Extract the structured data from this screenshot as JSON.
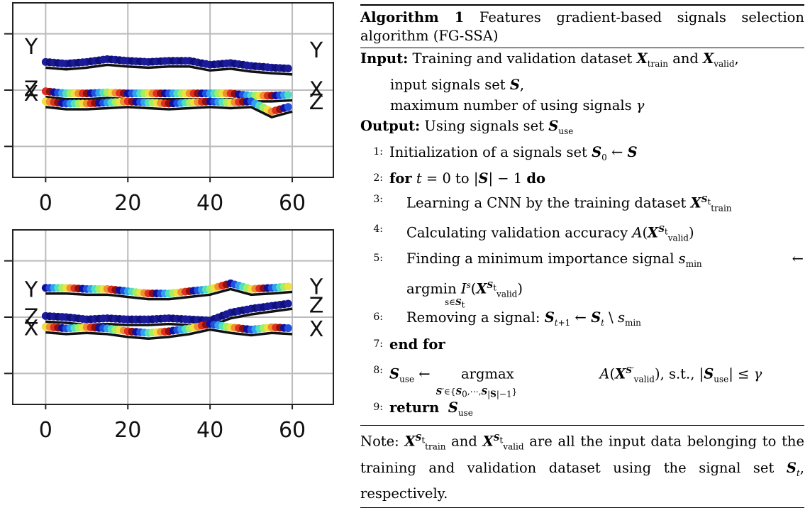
{
  "chart_data": [
    {
      "type": "line",
      "x_ticks": [
        0,
        20,
        40,
        60
      ],
      "xlim": [
        -8,
        70
      ],
      "grid": true,
      "left_labels": [
        {
          "text": "Y",
          "at": 0.78
        },
        {
          "text": "Z",
          "at": 0.03
        },
        {
          "text": "X",
          "at": -0.05
        }
      ],
      "right_labels": [
        {
          "text": "Y",
          "at": 0.72
        },
        {
          "text": "X",
          "at": 0.02
        },
        {
          "text": "Z",
          "at": -0.2
        }
      ],
      "ylim": [
        -1.55,
        1.55
      ],
      "y_grid": [
        -1.0,
        0.0,
        1.0
      ],
      "series": [
        {
          "color_map": "blue",
          "x": [
            0,
            5,
            10,
            15,
            20,
            25,
            30,
            35,
            40,
            45,
            50,
            55,
            60
          ],
          "y": [
            0.5,
            0.47,
            0.5,
            0.55,
            0.52,
            0.5,
            0.52,
            0.52,
            0.45,
            0.48,
            0.43,
            0.4,
            0.38
          ]
        },
        {
          "color_map": "jet",
          "x": [
            0,
            5,
            10,
            15,
            20,
            25,
            30,
            35,
            40,
            45,
            50,
            55,
            60
          ],
          "y": [
            -0.02,
            -0.06,
            -0.06,
            -0.04,
            -0.06,
            -0.06,
            -0.06,
            -0.06,
            -0.06,
            -0.06,
            -0.1,
            -0.1,
            -0.08
          ]
        },
        {
          "color_map": "jet",
          "x": [
            0,
            5,
            10,
            15,
            20,
            25,
            30,
            35,
            40,
            45,
            50,
            55,
            60
          ],
          "y": [
            -0.2,
            -0.24,
            -0.24,
            -0.22,
            -0.2,
            -0.22,
            -0.24,
            -0.22,
            -0.2,
            -0.22,
            -0.2,
            -0.38,
            -0.28
          ]
        }
      ]
    },
    {
      "type": "line",
      "x_ticks": [
        0,
        20,
        40,
        60
      ],
      "xlim": [
        -8,
        70
      ],
      "grid": true,
      "left_labels": [
        {
          "text": "Y",
          "at": 0.5
        },
        {
          "text": "Z",
          "at": 0.02
        },
        {
          "text": "X",
          "at": -0.18
        }
      ],
      "right_labels": [
        {
          "text": "Y",
          "at": 0.55
        },
        {
          "text": "Z",
          "at": 0.22
        },
        {
          "text": "X",
          "at": -0.2
        }
      ],
      "ylim": [
        -1.55,
        1.55
      ],
      "y_grid": [
        -1.0,
        0.0,
        1.0
      ],
      "series": [
        {
          "color_map": "jet",
          "x": [
            0,
            5,
            10,
            15,
            20,
            25,
            30,
            35,
            40,
            45,
            50,
            55,
            60
          ],
          "y": [
            0.52,
            0.52,
            0.5,
            0.5,
            0.46,
            0.42,
            0.42,
            0.46,
            0.5,
            0.6,
            0.5,
            0.52,
            0.55
          ]
        },
        {
          "color_map": "blue",
          "x": [
            0,
            5,
            10,
            15,
            20,
            25,
            30,
            35,
            40,
            45,
            50,
            55,
            60
          ],
          "y": [
            0.02,
            0.0,
            -0.04,
            -0.02,
            -0.04,
            -0.04,
            -0.02,
            -0.04,
            -0.06,
            0.08,
            0.15,
            0.2,
            0.25
          ]
        },
        {
          "color_map": "jet",
          "x": [
            0,
            5,
            10,
            15,
            20,
            25,
            30,
            35,
            40,
            45,
            50,
            55,
            60
          ],
          "y": [
            -0.17,
            -0.2,
            -0.18,
            -0.2,
            -0.25,
            -0.28,
            -0.25,
            -0.2,
            -0.12,
            -0.18,
            -0.22,
            -0.18,
            -0.2
          ]
        }
      ]
    }
  ],
  "algorithm": {
    "heading": "Algorithm 1",
    "title_text": " Features gradient-based signals selection algorithm (FG-SSA)",
    "input_label": "Input:",
    "input_lines": [
      "Training and validation dataset X_train and X_valid,",
      "input signals set S,",
      "maximum number of using signals γ"
    ],
    "output_label": "Output:",
    "output_text": "Using signals set S_use",
    "steps": [
      {
        "num": "1:",
        "text": "Initialization of a signals set S_0 ← S"
      },
      {
        "num": "2:",
        "kw_for": "for",
        "text": "t = 0 to |S| − 1",
        "kw_do": "do"
      },
      {
        "num": "3:",
        "text": "Learning a CNN by the training dataset"
      },
      {
        "num": "4:",
        "text": "Calculating validation accuracy"
      },
      {
        "num": "5:",
        "text": "Finding a minimum importance signal"
      },
      {
        "num": "6:",
        "text": "Removing a signal:"
      },
      {
        "num": "7:",
        "kw": "end for"
      },
      {
        "num": "8:",
        "text": "S_use ←"
      },
      {
        "num": "9:",
        "kw": "return"
      }
    ],
    "note_label": "Note:",
    "note_text": "are all the input data belonging to the training and validation dataset using the signal set",
    "note_tail": "respectively."
  }
}
